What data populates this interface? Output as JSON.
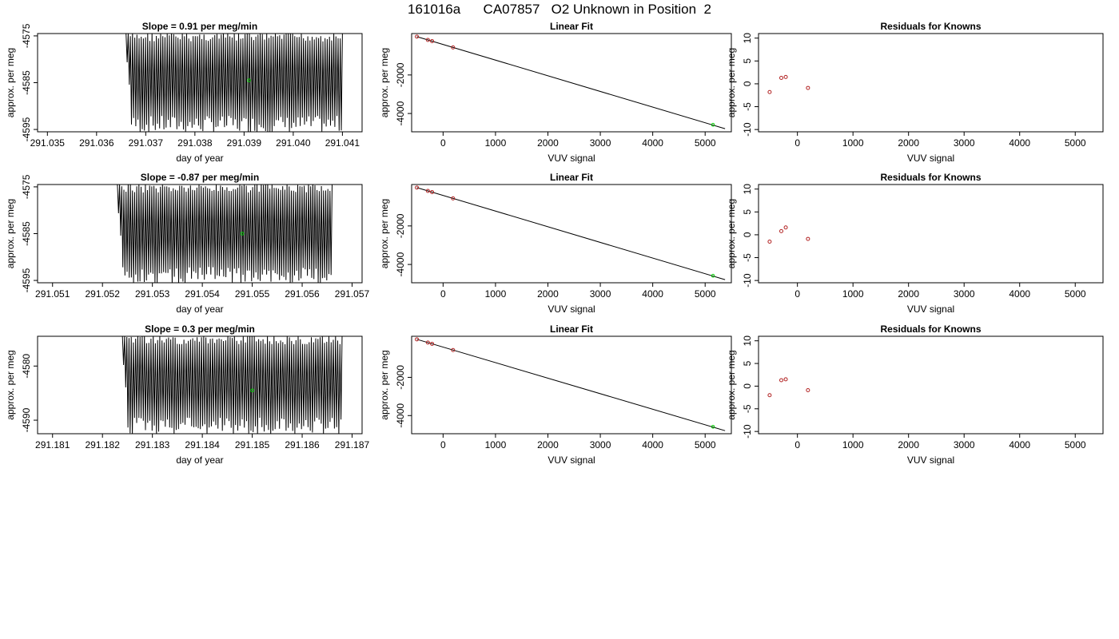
{
  "title": "161016a      CA07857   O2 Unknown in Position  2",
  "colors": {
    "trace": "#000000",
    "known": "#b22222",
    "unknown": "#00cc00",
    "frame": "#000000"
  },
  "chart_data": [
    {
      "type": "line",
      "row": 0,
      "col": 0,
      "title": "Slope =  0.91  per meg/min",
      "xlabel": "day of year",
      "ylabel": "approx. per meg",
      "xlim": [
        291.0348,
        291.0414
      ],
      "ylim": [
        -4595.5,
        -4574.5
      ],
      "xticks": [
        291.035,
        291.036,
        291.037,
        291.038,
        291.039,
        291.04,
        291.041
      ],
      "xtick_labels": [
        "291.035",
        "291.036",
        "291.037",
        "291.038",
        "291.039",
        "291.040",
        "291.041"
      ],
      "yticks": [
        -4575,
        -4585,
        -4595
      ],
      "ytick_labels": [
        "-4575",
        "-4585",
        "-4595"
      ],
      "trace_x_range": [
        291.0366,
        291.041
      ],
      "trace_y_range": [
        -4595.5,
        -4574.5
      ],
      "trace_cycles": 100,
      "unknown_point": {
        "x": 291.0391,
        "y": -4584.5
      }
    },
    {
      "type": "scatter",
      "row": 0,
      "col": 1,
      "title": "Linear Fit",
      "xlabel": "VUV signal",
      "ylabel": "approx. per meg",
      "xlim": [
        -600,
        5500
      ],
      "ylim": [
        -4950,
        150
      ],
      "xticks": [
        0,
        1000,
        2000,
        3000,
        4000,
        5000
      ],
      "xtick_labels": [
        "0",
        "1000",
        "2000",
        "3000",
        "4000",
        "5000"
      ],
      "yticks": [
        -2000,
        -4000
      ],
      "ytick_labels": [
        "-2000",
        "-4000"
      ],
      "line": [
        [
          -500,
          -10
        ],
        [
          5380,
          -4790
        ]
      ],
      "knowns": [
        {
          "x": -500,
          "y": -10
        },
        {
          "x": -290,
          "y": -180
        },
        {
          "x": -210,
          "y": -245
        },
        {
          "x": 190,
          "y": -570
        }
      ],
      "unknown": {
        "x": 5150,
        "y": -4585
      }
    },
    {
      "type": "scatter",
      "row": 0,
      "col": 2,
      "title": "Residuals for Knowns",
      "xlabel": "VUV signal",
      "ylabel": "approx. per meg",
      "xlim": [
        -700,
        5500
      ],
      "ylim": [
        -10.5,
        11
      ],
      "xticks": [
        0,
        1000,
        2000,
        3000,
        4000,
        5000
      ],
      "xtick_labels": [
        "0",
        "1000",
        "2000",
        "3000",
        "4000",
        "5000"
      ],
      "yticks": [
        10,
        5,
        0,
        -5,
        -10
      ],
      "ytick_labels": [
        "10",
        "5",
        "0",
        "-5",
        "-10"
      ],
      "knowns": [
        {
          "x": -500,
          "y": -1.8
        },
        {
          "x": -290,
          "y": 1.3
        },
        {
          "x": -210,
          "y": 1.5
        },
        {
          "x": 190,
          "y": -0.9
        }
      ]
    },
    {
      "type": "line",
      "row": 1,
      "col": 0,
      "title": "Slope =  -0.87  per meg/min",
      "xlabel": "day of year",
      "ylabel": "approx. per meg",
      "xlim": [
        291.0507,
        291.0572
      ],
      "ylim": [
        -4595.5,
        -4574.5
      ],
      "xticks": [
        291.051,
        291.052,
        291.053,
        291.054,
        291.055,
        291.056,
        291.057
      ],
      "xtick_labels": [
        "291.051",
        "291.052",
        "291.053",
        "291.054",
        "291.055",
        "291.056",
        "291.057"
      ],
      "yticks": [
        -4575,
        -4585,
        -4595
      ],
      "ytick_labels": [
        "-4575",
        "-4585",
        "-4595"
      ],
      "trace_x_range": [
        291.0523,
        291.0566
      ],
      "trace_y_range": [
        -4595.5,
        -4574.5
      ],
      "trace_cycles": 100,
      "unknown_point": {
        "x": 291.0548,
        "y": -4585
      }
    },
    {
      "type": "scatter",
      "row": 1,
      "col": 1,
      "title": "Linear Fit",
      "xlabel": "VUV signal",
      "ylabel": "approx. per meg",
      "xlim": [
        -600,
        5500
      ],
      "ylim": [
        -4950,
        150
      ],
      "xticks": [
        0,
        1000,
        2000,
        3000,
        4000,
        5000
      ],
      "xtick_labels": [
        "0",
        "1000",
        "2000",
        "3000",
        "4000",
        "5000"
      ],
      "yticks": [
        -2000,
        -4000
      ],
      "ytick_labels": [
        "-2000",
        "-4000"
      ],
      "line": [
        [
          -500,
          -10
        ],
        [
          5380,
          -4790
        ]
      ],
      "knowns": [
        {
          "x": -500,
          "y": -10
        },
        {
          "x": -290,
          "y": -180
        },
        {
          "x": -210,
          "y": -245
        },
        {
          "x": 190,
          "y": -570
        }
      ],
      "unknown": {
        "x": 5150,
        "y": -4585
      }
    },
    {
      "type": "scatter",
      "row": 1,
      "col": 2,
      "title": "Residuals for Knowns",
      "xlabel": "VUV signal",
      "ylabel": "approx. per meg",
      "xlim": [
        -700,
        5500
      ],
      "ylim": [
        -10.5,
        11
      ],
      "xticks": [
        0,
        1000,
        2000,
        3000,
        4000,
        5000
      ],
      "xtick_labels": [
        "0",
        "1000",
        "2000",
        "3000",
        "4000",
        "5000"
      ],
      "yticks": [
        10,
        5,
        0,
        -5,
        -10
      ],
      "ytick_labels": [
        "10",
        "5",
        "0",
        "-5",
        "-10"
      ],
      "knowns": [
        {
          "x": -500,
          "y": -1.5
        },
        {
          "x": -290,
          "y": 0.8
        },
        {
          "x": -210,
          "y": 1.6
        },
        {
          "x": 190,
          "y": -0.9
        }
      ]
    },
    {
      "type": "line",
      "row": 2,
      "col": 0,
      "title": "Slope =  0.3  per meg/min",
      "xlabel": "day of year",
      "ylabel": "approx. per meg",
      "xlim": [
        291.1807,
        291.1872
      ],
      "ylim": [
        -4592.5,
        -4574.5
      ],
      "xticks": [
        291.181,
        291.182,
        291.183,
        291.184,
        291.185,
        291.186,
        291.187
      ],
      "xtick_labels": [
        "291.181",
        "291.182",
        "291.183",
        "291.184",
        "291.185",
        "291.186",
        "291.187"
      ],
      "yticks": [
        -4580,
        -4590
      ],
      "ytick_labels": [
        "-4580",
        "-4590"
      ],
      "trace_x_range": [
        291.1824,
        291.1868
      ],
      "trace_y_range": [
        -4592.5,
        -4574.5
      ],
      "trace_cycles": 100,
      "unknown_point": {
        "x": 291.185,
        "y": -4584.5
      }
    },
    {
      "type": "scatter",
      "row": 2,
      "col": 1,
      "title": "Linear Fit",
      "xlabel": "VUV signal",
      "ylabel": "approx. per meg",
      "xlim": [
        -600,
        5500
      ],
      "ylim": [
        -4950,
        150
      ],
      "xticks": [
        0,
        1000,
        2000,
        3000,
        4000,
        5000
      ],
      "xtick_labels": [
        "0",
        "1000",
        "2000",
        "3000",
        "4000",
        "5000"
      ],
      "yticks": [
        -2000,
        -4000
      ],
      "ytick_labels": [
        "-2000",
        "-4000"
      ],
      "line": [
        [
          -500,
          -10
        ],
        [
          5380,
          -4790
        ]
      ],
      "knowns": [
        {
          "x": -500,
          "y": -10
        },
        {
          "x": -290,
          "y": -180
        },
        {
          "x": -210,
          "y": -245
        },
        {
          "x": 190,
          "y": -570
        }
      ],
      "unknown": {
        "x": 5150,
        "y": -4585
      }
    },
    {
      "type": "scatter",
      "row": 2,
      "col": 2,
      "title": "Residuals for Knowns",
      "xlabel": "VUV signal",
      "ylabel": "approx. per meg",
      "xlim": [
        -700,
        5500
      ],
      "ylim": [
        -10.5,
        11
      ],
      "xticks": [
        0,
        1000,
        2000,
        3000,
        4000,
        5000
      ],
      "xtick_labels": [
        "0",
        "1000",
        "2000",
        "3000",
        "4000",
        "5000"
      ],
      "yticks": [
        10,
        5,
        0,
        -5,
        -10
      ],
      "ytick_labels": [
        "10",
        "5",
        "0",
        "-5",
        "-10"
      ],
      "knowns": [
        {
          "x": -500,
          "y": -2.0
        },
        {
          "x": -290,
          "y": 1.3
        },
        {
          "x": -210,
          "y": 1.5
        },
        {
          "x": 190,
          "y": -0.9
        }
      ]
    }
  ]
}
